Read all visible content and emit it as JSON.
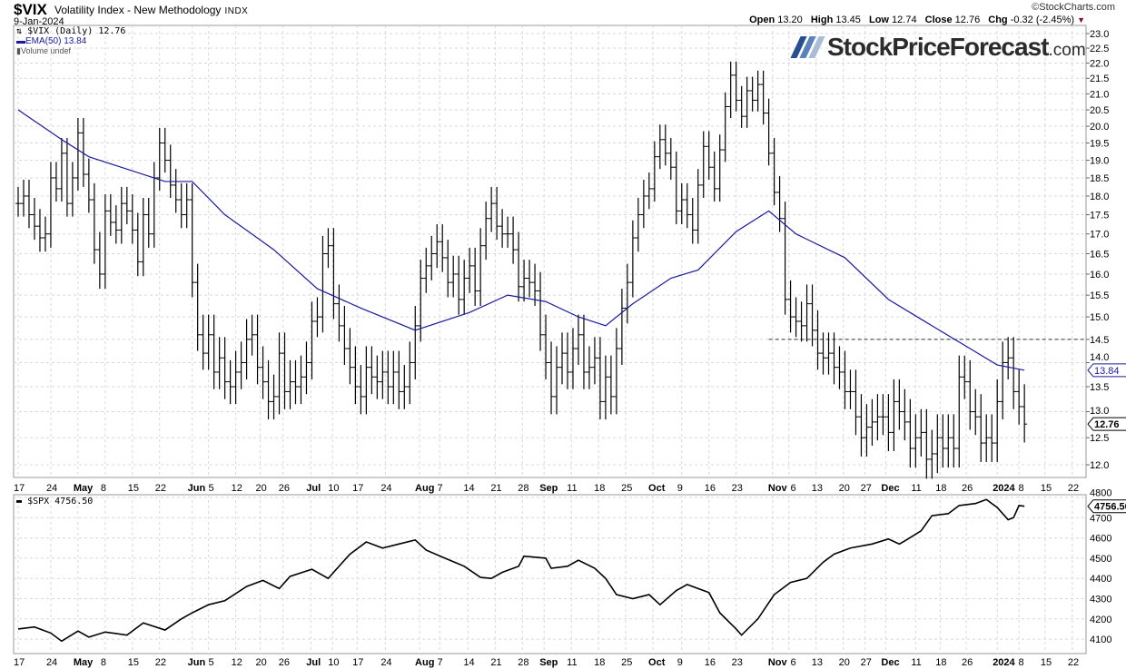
{
  "header": {
    "symbol": "$VIX",
    "name": "Volatility Index - New Methodology",
    "exchange": "INDX",
    "date": "9-Jan-2024",
    "copyright": "©StockCharts.com",
    "open_label": "Open",
    "open": "13.20",
    "high_label": "High",
    "high": "13.45",
    "low_label": "Low",
    "low": "12.74",
    "close_label": "Close",
    "close": "12.76",
    "chg_label": "Chg",
    "chg": "-0.32 (-2.45%)"
  },
  "legend": {
    "vix": "$VIX (Daily) 12.76",
    "ema": "EMA(50) 13.84",
    "volume": "Volume undef",
    "spx": "$SPX 4756.50"
  },
  "logo": {
    "main": "StockPriceForecast",
    "suffix": ".com"
  },
  "colors": {
    "ema": "#1a1a9c",
    "price": "#000000",
    "grid": "#d8d8d8",
    "logo_slashes": [
      "#2a4f8f",
      "#5b82bb",
      "#a9bdd6"
    ]
  },
  "chart_data": [
    {
      "type": "ohlc",
      "title": "$VIX (Daily)",
      "scale": "log",
      "ylim": [
        11.8,
        23.2
      ],
      "yticks": [
        "23.0",
        "22.5",
        "22.0",
        "21.5",
        "21.0",
        "20.5",
        "20.0",
        "19.5",
        "19.0",
        "18.5",
        "18.0",
        "17.5",
        "17.0",
        "16.5",
        "16.0",
        "15.5",
        "15.0",
        "14.5",
        "14.0",
        "13.5",
        "13.0",
        "12.5",
        "12.0"
      ],
      "closes": [
        17.8,
        18.0,
        17.5,
        17.2,
        16.9,
        17.0,
        18.5,
        18.2,
        19.2,
        17.8,
        18.5,
        19.8,
        18.6,
        17.9,
        16.6,
        16.0,
        17.6,
        17.3,
        17.1,
        17.8,
        17.6,
        17.1,
        16.3,
        17.5,
        17.0,
        18.5,
        19.5,
        19.0,
        18.3,
        17.9,
        17.5,
        17.9,
        15.8,
        14.6,
        14.2,
        14.6,
        13.8,
        14.1,
        13.6,
        13.5,
        13.8,
        14.0,
        14.5,
        14.6,
        13.9,
        13.6,
        13.2,
        13.3,
        14.2,
        13.4,
        13.6,
        13.5,
        13.7,
        14.0,
        14.9,
        15.0,
        16.5,
        16.7,
        15.3,
        14.8,
        14.3,
        13.9,
        13.5,
        13.3,
        13.9,
        13.7,
        13.6,
        13.8,
        13.5,
        13.8,
        13.4,
        13.5,
        14.0,
        14.8,
        15.9,
        16.2,
        16.5,
        16.8,
        16.4,
        15.8,
        16.0,
        15.4,
        15.9,
        16.2,
        15.6,
        16.7,
        17.4,
        17.8,
        17.2,
        17.0,
        17.0,
        16.6,
        15.7,
        15.9,
        15.8,
        15.6,
        14.6,
        14.0,
        13.3,
        13.9,
        14.2,
        13.8,
        14.3,
        14.6,
        13.8,
        13.9,
        14.1,
        13.2,
        13.7,
        13.3,
        14.3,
        15.2,
        15.8,
        16.9,
        17.5,
        18.0,
        18.2,
        19.1,
        19.6,
        19.2,
        18.8,
        17.6,
        17.9,
        17.5,
        17.1,
        18.3,
        19.4,
        18.8,
        18.2,
        19.3,
        20.6,
        21.6,
        20.8,
        20.3,
        21.1,
        20.8,
        21.3,
        20.4,
        19.2,
        18.1,
        17.4,
        15.4,
        15.0,
        14.9,
        14.8,
        15.3,
        14.7,
        14.2,
        14.1,
        14.2,
        13.9,
        13.8,
        13.4,
        13.4,
        12.9,
        12.5,
        12.7,
        12.8,
        12.9,
        12.9,
        12.6,
        13.2,
        13.0,
        12.8,
        12.3,
        12.5,
        12.6,
        12.1,
        12.2,
        12.5,
        12.3,
        12.5,
        12.3,
        13.7,
        13.6,
        13.0,
        12.9,
        12.4,
        12.5,
        12.4,
        13.2,
        14.0,
        14.1,
        13.4,
        13.1,
        12.76
      ],
      "ema50": [
        [
          0,
          20.5
        ],
        [
          8,
          19.6
        ],
        [
          13,
          19.1
        ],
        [
          27,
          18.4
        ],
        [
          32,
          18.4
        ],
        [
          38,
          17.5
        ],
        [
          47,
          16.6
        ],
        [
          55,
          15.65
        ],
        [
          63,
          15.2
        ],
        [
          73,
          14.7
        ],
        [
          83,
          15.1
        ],
        [
          90,
          15.5
        ],
        [
          97,
          15.35
        ],
        [
          103,
          15.0
        ],
        [
          108,
          14.8
        ],
        [
          113,
          15.3
        ],
        [
          120,
          15.9
        ],
        [
          125,
          16.1
        ],
        [
          132,
          17.06
        ],
        [
          138,
          17.6
        ],
        [
          143,
          17.0
        ],
        [
          152,
          16.4
        ],
        [
          160,
          15.4
        ],
        [
          168,
          14.8
        ],
        [
          175,
          14.3
        ],
        [
          180,
          13.95
        ],
        [
          185,
          13.84
        ]
      ],
      "hline": {
        "value": 14.5,
        "from_day": 138
      },
      "last_close_label": "12.76",
      "ema_label": "13.84"
    },
    {
      "type": "line",
      "title": "$SPX",
      "ylim": [
        4060,
        4820
      ],
      "yticks": [
        "4800",
        "4700",
        "4600",
        "4500",
        "4400",
        "4300",
        "4200",
        "4100"
      ],
      "points": [
        [
          0,
          4150
        ],
        [
          3,
          4160
        ],
        [
          6,
          4130
        ],
        [
          8,
          4090
        ],
        [
          11,
          4140
        ],
        [
          13,
          4110
        ],
        [
          16,
          4135
        ],
        [
          20,
          4120
        ],
        [
          23,
          4180
        ],
        [
          27,
          4145
        ],
        [
          30,
          4200
        ],
        [
          32,
          4230
        ],
        [
          35,
          4270
        ],
        [
          38,
          4290
        ],
        [
          42,
          4360
        ],
        [
          45,
          4390
        ],
        [
          48,
          4350
        ],
        [
          50,
          4410
        ],
        [
          54,
          4445
        ],
        [
          57,
          4400
        ],
        [
          61,
          4520
        ],
        [
          64,
          4580
        ],
        [
          67,
          4550
        ],
        [
          70,
          4570
        ],
        [
          73,
          4590
        ],
        [
          75,
          4540
        ],
        [
          78,
          4505
        ],
        [
          82,
          4460
        ],
        [
          85,
          4405
        ],
        [
          87,
          4400
        ],
        [
          89,
          4430
        ],
        [
          92,
          4460
        ],
        [
          93,
          4510
        ],
        [
          97,
          4500
        ],
        [
          98,
          4450
        ],
        [
          101,
          4460
        ],
        [
          103,
          4490
        ],
        [
          106,
          4450
        ],
        [
          108,
          4400
        ],
        [
          110,
          4320
        ],
        [
          113,
          4300
        ],
        [
          116,
          4320
        ],
        [
          118,
          4270
        ],
        [
          121,
          4340
        ],
        [
          123,
          4370
        ],
        [
          127,
          4330
        ],
        [
          129,
          4230
        ],
        [
          132,
          4150
        ],
        [
          133,
          4120
        ],
        [
          136,
          4200
        ],
        [
          139,
          4320
        ],
        [
          142,
          4380
        ],
        [
          145,
          4400
        ],
        [
          148,
          4480
        ],
        [
          150,
          4520
        ],
        [
          153,
          4550
        ],
        [
          157,
          4570
        ],
        [
          160,
          4595
        ],
        [
          162,
          4570
        ],
        [
          163,
          4585
        ],
        [
          166,
          4635
        ],
        [
          168,
          4710
        ],
        [
          171,
          4720
        ],
        [
          173,
          4760
        ],
        [
          176,
          4770
        ],
        [
          178,
          4790
        ],
        [
          180,
          4750
        ],
        [
          182,
          4690
        ],
        [
          183,
          4700
        ],
        [
          184,
          4760
        ],
        [
          185,
          4756.5
        ]
      ],
      "last_label": "4756.50"
    }
  ],
  "xaxis": [
    [
      "17",
      0
    ],
    [
      "24",
      6
    ],
    [
      "May",
      11
    ],
    [
      "8",
      16
    ],
    [
      "15",
      21
    ],
    [
      "22",
      26
    ],
    [
      "Jun",
      32
    ],
    [
      "5",
      35
    ],
    [
      "12",
      40
    ],
    [
      "20",
      44.5
    ],
    [
      "26",
      48.7
    ],
    [
      "Jul",
      53.8
    ],
    [
      "10",
      57.8
    ],
    [
      "17",
      62.3
    ],
    [
      "24",
      67.5
    ],
    [
      "Aug",
      73.8
    ],
    [
      "7",
      77.5
    ],
    [
      "14",
      82.7
    ],
    [
      "21",
      87.7
    ],
    [
      "28",
      92.7
    ],
    [
      "Sep",
      96.7
    ],
    [
      "11",
      101.7
    ],
    [
      "18",
      106.7
    ],
    [
      "25",
      111.7
    ],
    [
      "Oct",
      116.7
    ],
    [
      "9",
      122
    ],
    [
      "16",
      127
    ],
    [
      "23",
      132
    ],
    [
      "Nov",
      138.7
    ],
    [
      "6",
      141.7
    ],
    [
      "13",
      146.7
    ],
    [
      "20",
      151.7
    ],
    [
      "27",
      155.7
    ],
    [
      "Dec",
      159.5
    ],
    [
      "11",
      165
    ],
    [
      "18",
      169.5
    ],
    [
      "26",
      174.3
    ],
    [
      "2024",
      180
    ],
    [
      "8",
      184
    ],
    [
      "15",
      188.8
    ],
    [
      "22",
      193.8
    ]
  ]
}
